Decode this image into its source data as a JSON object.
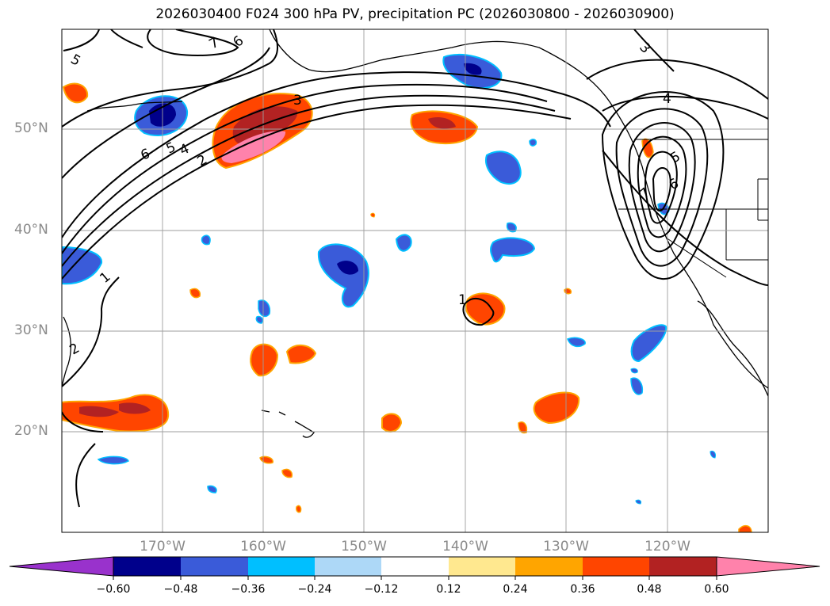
{
  "title": "2026030400 F024 300 hPa PV, precipitation PC (2026030800 - 2026030900)",
  "map": {
    "lat_labels": [
      "50°N",
      "40°N",
      "30°N",
      "20°N"
    ],
    "lon_labels": [
      "170°W",
      "160°W",
      "150°W",
      "140°W",
      "130°W",
      "120°W"
    ],
    "pv_contour_labels": [
      "7",
      "6",
      "5",
      "3",
      "2",
      "1",
      "6",
      "5",
      "4",
      "2",
      "1",
      "3",
      "4",
      "5",
      "6",
      "7"
    ]
  },
  "colorbar": {
    "ticks": [
      "−0.60",
      "−0.48",
      "−0.36",
      "−0.24",
      "−0.12",
      "0.12",
      "0.24",
      "0.36",
      "0.48",
      "0.60"
    ],
    "colors": [
      "#9932cc",
      "#00008b",
      "#3a5bd9",
      "#00bfff",
      "#add8f7",
      "#ffffff",
      "#ffe88f",
      "#ffa500",
      "#ff4500",
      "#b22222",
      "#ff82ab"
    ]
  }
}
